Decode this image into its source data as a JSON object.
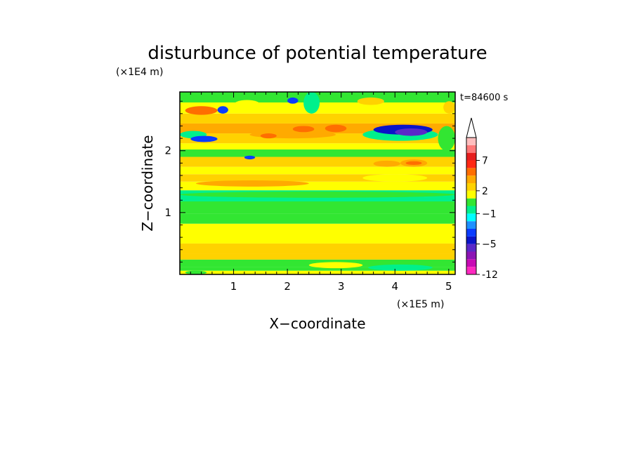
{
  "chart_data": {
    "type": "heatmap",
    "title": "disturbunce of potential temperature",
    "xlabel": "X−coordinate",
    "ylabel": "Z−coordinate",
    "x_scale_label": "(×1E5 m)",
    "y_scale_label": "(×1E4 m)",
    "time_label": "t=84600 s",
    "xlim": [
      0,
      5.12
    ],
    "ylim": [
      0,
      2.95
    ],
    "x_ticks": [
      "1",
      "2",
      "3",
      "4",
      "5"
    ],
    "y_ticks": [
      "1",
      "2"
    ],
    "x_tick_values": [
      1,
      2,
      3,
      4,
      5
    ],
    "y_tick_values": [
      1,
      2
    ],
    "colorbar": {
      "levels": [
        "-12",
        "-10",
        "-8",
        "-6",
        "-5",
        "-4",
        "-3",
        "-2",
        "-1",
        "0",
        "1",
        "2",
        "3",
        "4",
        "6",
        "7",
        "8",
        "10"
      ],
      "colors": [
        "#ff28c0",
        "#c80ab4",
        "#8c14b4",
        "#5a28c8",
        "#0a14c8",
        "#0a3cff",
        "#1e90ff",
        "#00ffff",
        "#00f08c",
        "#32e632",
        "#ffff00",
        "#ffd200",
        "#ffaa00",
        "#ff6e00",
        "#ff2814",
        "#e61e1e",
        "#ff7878",
        "#ffbebe"
      ],
      "tick_labels": [
        "-12",
        "−5",
        "−1",
        "2",
        "7"
      ],
      "tick_values": [
        -12,
        -5,
        -1,
        2,
        7
      ]
    },
    "bands": [
      {
        "z": [
          0.0,
          0.06
        ],
        "value": 1.5
      },
      {
        "z": [
          0.06,
          0.12
        ],
        "value": 0.5
      },
      {
        "z": [
          0.12,
          0.24
        ],
        "value": 0.5
      },
      {
        "z": [
          0.24,
          0.34
        ],
        "value": 2.5
      },
      {
        "z": [
          0.34,
          0.5
        ],
        "value": 2.5
      },
      {
        "z": [
          0.5,
          0.82
        ],
        "value": 1.5
      },
      {
        "z": [
          0.82,
          0.98
        ],
        "value": 0.5
      },
      {
        "z": [
          0.98,
          1.18
        ],
        "value": 0.5
      },
      {
        "z": [
          1.18,
          1.36
        ],
        "value": -0.5
      },
      {
        "z": [
          1.36,
          1.5
        ],
        "value": 1.5
      },
      {
        "z": [
          1.5,
          1.62
        ],
        "value": 2.5
      },
      {
        "z": [
          1.62,
          1.74
        ],
        "value": 1.5
      },
      {
        "z": [
          1.74,
          1.9
        ],
        "value": 2.5
      },
      {
        "z": [
          1.9,
          2.02
        ],
        "value": 0.5
      },
      {
        "z": [
          2.02,
          2.12
        ],
        "value": 1.5
      },
      {
        "z": [
          2.12,
          2.28
        ],
        "value": 2.5
      },
      {
        "z": [
          2.28,
          2.44
        ],
        "value": 3.5
      },
      {
        "z": [
          2.44,
          2.6
        ],
        "value": 2.5
      },
      {
        "z": [
          2.6,
          2.78
        ],
        "value": 1.5
      },
      {
        "z": [
          2.78,
          2.95
        ],
        "value": 0.5
      }
    ],
    "features": [
      {
        "x": [
          0.2,
          1.2
        ],
        "z": [
          0.36,
          0.48
        ],
        "value": 2.5
      },
      {
        "x": [
          1.4,
          1.9
        ],
        "z": [
          0.36,
          0.48
        ],
        "value": 2.5
      },
      {
        "x": [
          3.6,
          4.4
        ],
        "z": [
          0.38,
          0.48
        ],
        "value": 2.5
      },
      {
        "x": [
          0.1,
          0.5
        ],
        "z": [
          0.0,
          0.06
        ],
        "value": 0.5
      },
      {
        "x": [
          2.4,
          3.4
        ],
        "z": [
          0.1,
          0.2
        ],
        "value": 1.5
      },
      {
        "x": [
          3.5,
          4.7
        ],
        "z": [
          0.06,
          0.16
        ],
        "value": -0.5
      },
      {
        "x": [
          0.0,
          5.12
        ],
        "z": [
          1.24,
          1.34
        ],
        "value": 0.5
      },
      {
        "x": [
          0.3,
          2.4
        ],
        "z": [
          1.42,
          1.52
        ],
        "value": 3.5
      },
      {
        "x": [
          3.4,
          4.6
        ],
        "z": [
          1.5,
          1.62
        ],
        "value": 1.5
      },
      {
        "x": [
          4.1,
          4.6
        ],
        "z": [
          1.74,
          1.86
        ],
        "value": 3.5
      },
      {
        "x": [
          4.2,
          4.5
        ],
        "z": [
          1.77,
          1.83
        ],
        "value": 4.5
      },
      {
        "x": [
          3.6,
          4.1
        ],
        "z": [
          1.74,
          1.84
        ],
        "value": 3.5
      },
      {
        "x": [
          1.2,
          1.4
        ],
        "z": [
          1.86,
          1.92
        ],
        "value": -3.5
      },
      {
        "x": [
          1.3,
          2.9
        ],
        "z": [
          2.2,
          2.32
        ],
        "value": 3.5
      },
      {
        "x": [
          1.5,
          1.8
        ],
        "z": [
          2.2,
          2.28
        ],
        "value": 4.5
      },
      {
        "x": [
          2.1,
          2.5
        ],
        "z": [
          2.3,
          2.4
        ],
        "value": 4.5
      },
      {
        "x": [
          2.7,
          3.1
        ],
        "z": [
          2.3,
          2.42
        ],
        "value": 4.5
      },
      {
        "x": [
          0.1,
          0.7
        ],
        "z": [
          2.58,
          2.72
        ],
        "value": 4.5
      },
      {
        "x": [
          0.0,
          0.5
        ],
        "z": [
          2.2,
          2.32
        ],
        "value": -0.5
      },
      {
        "x": [
          0.2,
          0.7
        ],
        "z": [
          2.14,
          2.24
        ],
        "value": -3.5
      },
      {
        "x": [
          0.7,
          0.9
        ],
        "z": [
          2.6,
          2.72
        ],
        "value": -3.5
      },
      {
        "x": [
          3.4,
          4.8
        ],
        "z": [
          2.16,
          2.36
        ],
        "value": -0.5
      },
      {
        "x": [
          3.6,
          4.7
        ],
        "z": [
          2.26,
          2.42
        ],
        "value": -4.5
      },
      {
        "x": [
          4.0,
          4.6
        ],
        "z": [
          2.24,
          2.36
        ],
        "value": -5.5
      },
      {
        "x": [
          2.3,
          2.6
        ],
        "z": [
          2.6,
          2.95
        ],
        "value": -0.5
      },
      {
        "x": [
          2.0,
          2.2
        ],
        "z": [
          2.76,
          2.86
        ],
        "value": -3.5
      },
      {
        "x": [
          4.8,
          5.12
        ],
        "z": [
          2.0,
          2.4
        ],
        "value": 0.5
      },
      {
        "x": [
          1.0,
          1.5
        ],
        "z": [
          2.66,
          2.82
        ],
        "value": 1.5
      },
      {
        "x": [
          3.3,
          3.8
        ],
        "z": [
          2.74,
          2.86
        ],
        "value": 2.5
      },
      {
        "x": [
          4.9,
          5.12
        ],
        "z": [
          2.6,
          2.8
        ],
        "value": 2.5
      }
    ]
  }
}
